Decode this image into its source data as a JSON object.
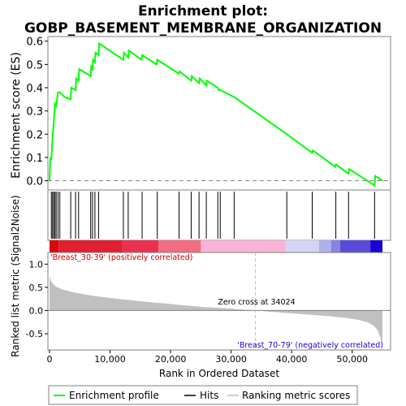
{
  "chart_data": {
    "type": "line",
    "title_line1": "Enrichment plot:",
    "title_line2": "GOBP_BASEMENT_MEMBRANE_ORGANIZATION",
    "es_panel": {
      "ylabel": "Enrichment score (ES)",
      "ylim": [
        -0.04,
        0.62
      ],
      "yticks": [
        "0.0",
        "0.1",
        "0.2",
        "0.3",
        "0.4",
        "0.5",
        "0.6"
      ],
      "ytick_values": [
        0.0,
        0.1,
        0.2,
        0.3,
        0.4,
        0.5,
        0.6
      ],
      "line_color": "#00ff00",
      "es_curve": {
        "rank": [
          0,
          150,
          300,
          500,
          700,
          900,
          1100,
          1400,
          1700,
          2500,
          3500,
          3600,
          4300,
          4400,
          4800,
          4900,
          6800,
          6900,
          7100,
          7200,
          7500,
          7600,
          8100,
          8200,
          12200,
          12300,
          13000,
          13100,
          15200,
          15300,
          17700,
          17800,
          21400,
          21500,
          23400,
          23500,
          24700,
          24800,
          25900,
          26000,
          27800,
          27900,
          28200,
          30500,
          39200,
          43400,
          43500,
          47200,
          47300,
          49400,
          49500,
          53700,
          53800,
          55000
        ],
        "es": [
          0.0,
          0.1,
          0.09,
          0.18,
          0.25,
          0.33,
          0.32,
          0.38,
          0.38,
          0.36,
          0.35,
          0.4,
          0.39,
          0.44,
          0.43,
          0.48,
          0.45,
          0.49,
          0.48,
          0.52,
          0.51,
          0.55,
          0.54,
          0.59,
          0.52,
          0.55,
          0.53,
          0.56,
          0.52,
          0.54,
          0.5,
          0.52,
          0.46,
          0.47,
          0.43,
          0.45,
          0.42,
          0.44,
          0.41,
          0.43,
          0.4,
          0.39,
          0.39,
          0.36,
          0.2,
          0.12,
          0.13,
          0.06,
          0.07,
          0.03,
          0.05,
          -0.02,
          0.02,
          0.0
        ]
      }
    },
    "hits_panel": {
      "hit_ranks": [
        300,
        500,
        700,
        900,
        1100,
        1400,
        1700,
        3500,
        4300,
        4800,
        6800,
        7100,
        7500,
        8100,
        12200,
        13000,
        15300,
        17800,
        21400,
        23400,
        24700,
        25900,
        27800,
        28200,
        30500,
        39200,
        43400,
        47300,
        49400,
        53700
      ]
    },
    "gradient_bar": {
      "label_pos": "'Breast_30-39' (positively correlated)",
      "label_neg": "'Breast_70-79' (negatively correlated)",
      "pos_color": "#d40000",
      "neg_color": "#1a00d4",
      "segments": [
        {
          "from": 0,
          "to": 1500,
          "color": "#d80808"
        },
        {
          "from": 1500,
          "to": 12000,
          "color": "#e02030"
        },
        {
          "from": 12000,
          "to": 18000,
          "color": "#ec3050"
        },
        {
          "from": 18000,
          "to": 25000,
          "color": "#f26c84"
        },
        {
          "from": 25000,
          "to": 39000,
          "color": "#f8b4d4"
        },
        {
          "from": 39000,
          "to": 44500,
          "color": "#d4d4f4"
        },
        {
          "from": 44500,
          "to": 46500,
          "color": "#b0b0ec"
        },
        {
          "from": 46500,
          "to": 48000,
          "color": "#8484e4"
        },
        {
          "from": 48000,
          "to": 53000,
          "color": "#5a4ad8"
        },
        {
          "from": 53000,
          "to": 55000,
          "color": "#1a00d4"
        }
      ]
    },
    "metric_panel": {
      "ylabel": "Ranked list metric (Signal2Noise)",
      "xlabel": "Rank in Ordered Dataset",
      "ylim": [
        -0.85,
        1.25
      ],
      "yticks": [
        "1.0",
        "0.5",
        "0.0",
        "-0.5"
      ],
      "ytick_values": [
        1.0,
        0.5,
        0.0,
        -0.5
      ],
      "xticks": [
        "0",
        "10,000",
        "20,000",
        "30,000",
        "40,000",
        "50,000"
      ],
      "xtick_values": [
        0,
        10000,
        20000,
        30000,
        40000,
        50000
      ],
      "xmax": 55000,
      "zero_cross_label": "Zero cross at 34024",
      "zero_cross_rank": 34024,
      "fill_color": "#c0c0c0",
      "metric_curve": {
        "rank": [
          0,
          300,
          1000,
          2000,
          4000,
          7000,
          10000,
          15000,
          20000,
          25000,
          30000,
          34024,
          38000,
          42000,
          46000,
          49000,
          51000,
          52500,
          53500,
          54200,
          54700,
          55000
        ],
        "value": [
          0.73,
          0.62,
          0.52,
          0.46,
          0.39,
          0.32,
          0.27,
          0.2,
          0.14,
          0.08,
          0.04,
          0.0,
          -0.04,
          -0.08,
          -0.12,
          -0.16,
          -0.2,
          -0.25,
          -0.32,
          -0.42,
          -0.6,
          -0.82
        ]
      }
    },
    "legend": {
      "entries": [
        "Enrichment profile",
        "Hits",
        "Ranking metric scores"
      ],
      "colors": [
        "#00ff00",
        "#000000",
        "#c0c0c0"
      ]
    }
  }
}
